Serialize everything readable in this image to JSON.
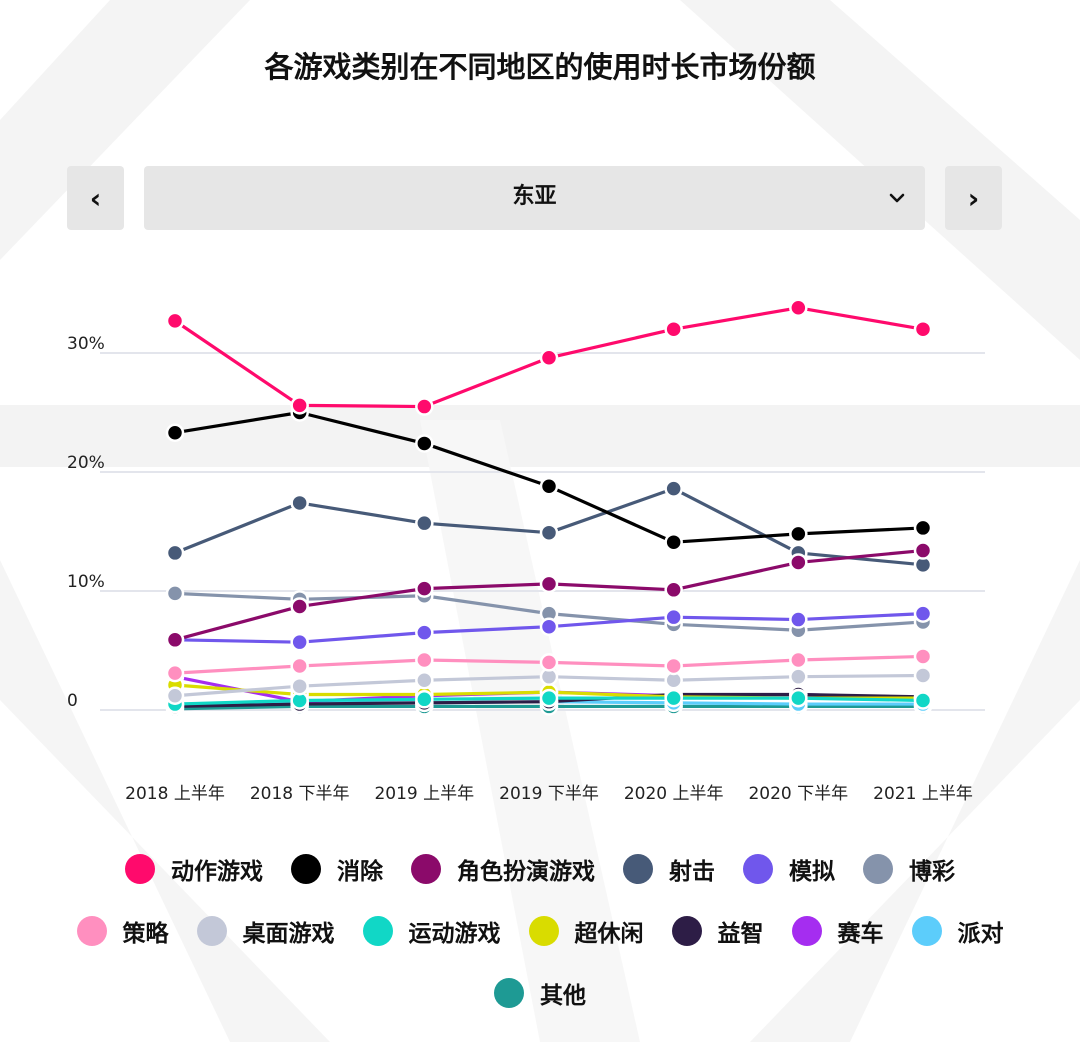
{
  "page": {
    "title": "各游戏类别在不同地区的使用时长市场份额"
  },
  "nav": {
    "prev_label": "‹",
    "next_label": "›",
    "region": "东亚"
  },
  "chart_data": {
    "type": "line",
    "title": "各游戏类别在不同地区的使用时长市场份额",
    "region": "东亚",
    "categories": [
      "2018 上半年",
      "2018 下半年",
      "2019 上半年",
      "2019 下半年",
      "2020 上半年",
      "2020 下半年",
      "2021 上半年"
    ],
    "ylim": [
      0,
      35
    ],
    "yticks": [
      {
        "value": 0,
        "label": "0"
      },
      {
        "value": 10,
        "label": "10%"
      },
      {
        "value": 20,
        "label": "20%"
      },
      {
        "value": 30,
        "label": "30%"
      }
    ],
    "series": [
      {
        "name": "动作游戏",
        "color": "#ff0a6c",
        "values": [
          32.7,
          25.6,
          25.5,
          29.6,
          32.0,
          33.8,
          32.0
        ]
      },
      {
        "name": "消除",
        "color": "#000000",
        "values": [
          23.3,
          25.0,
          22.4,
          18.8,
          14.1,
          14.8,
          15.3
        ]
      },
      {
        "name": "角色扮演游戏",
        "color": "#8b0a6a",
        "values": [
          5.9,
          8.7,
          10.2,
          10.6,
          10.1,
          12.4,
          13.4
        ]
      },
      {
        "name": "射击",
        "color": "#475a78",
        "values": [
          13.2,
          17.4,
          15.7,
          14.9,
          18.6,
          13.2,
          12.2
        ]
      },
      {
        "name": "模拟",
        "color": "#7057ec",
        "values": [
          5.9,
          5.7,
          6.5,
          7.0,
          7.8,
          7.6,
          8.1
        ]
      },
      {
        "name": "博彩",
        "color": "#8593ab",
        "values": [
          9.8,
          9.3,
          9.6,
          8.1,
          7.2,
          6.7,
          7.4
        ]
      },
      {
        "name": "策略",
        "color": "#ff8fbf",
        "values": [
          3.1,
          3.7,
          4.2,
          4.0,
          3.7,
          4.2,
          4.5
        ]
      },
      {
        "name": "桌面游戏",
        "color": "#c3c8d8",
        "values": [
          1.2,
          2.0,
          2.5,
          2.8,
          2.5,
          2.8,
          2.9
        ]
      },
      {
        "name": "运动游戏",
        "color": "#11d7c6",
        "values": [
          0.5,
          0.8,
          0.9,
          1.0,
          1.0,
          1.0,
          0.8
        ]
      },
      {
        "name": "超休闲",
        "color": "#d9dc00",
        "values": [
          2.1,
          1.3,
          1.3,
          1.5,
          1.1,
          1.0,
          1.0
        ]
      },
      {
        "name": "益智",
        "color": "#2d1d46",
        "values": [
          0.3,
          0.5,
          0.6,
          0.7,
          1.3,
          1.3,
          1.1
        ]
      },
      {
        "name": "赛车",
        "color": "#a52df0",
        "values": [
          2.8,
          0.7,
          1.2,
          1.5,
          1.2,
          1.3,
          1.0
        ]
      },
      {
        "name": "派对",
        "color": "#5ccdfb",
        "values": [
          0.5,
          0.6,
          0.6,
          0.7,
          0.6,
          0.5,
          0.5
        ]
      },
      {
        "name": "其他",
        "color": "#1e9a94",
        "values": [
          0.1,
          0.3,
          0.3,
          0.3,
          0.3,
          0.3,
          0.3
        ]
      }
    ],
    "legend_rows": [
      [
        "动作游戏",
        "消除",
        "角色扮演游戏",
        "射击",
        "模拟",
        "博彩"
      ],
      [
        "策略",
        "桌面游戏",
        "运动游戏",
        "超休闲",
        "益智",
        "赛车",
        "派对"
      ],
      [
        "其他"
      ]
    ]
  }
}
